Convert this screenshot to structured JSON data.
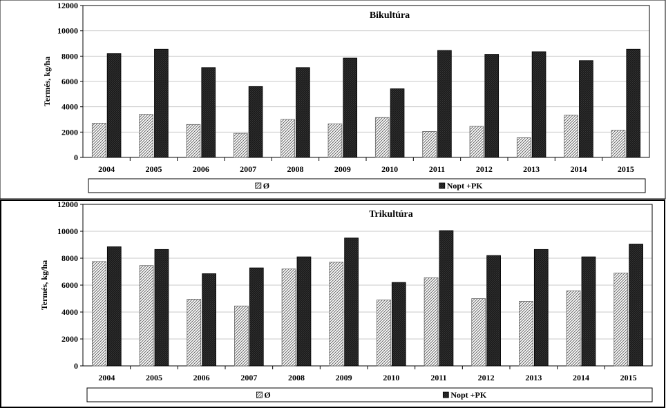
{
  "chart_data": [
    {
      "type": "bar",
      "title": "Bikultúra",
      "xlabel": "",
      "ylabel": "Termés, kg/ha",
      "ylim": [
        0,
        12000
      ],
      "yticks": [
        "0",
        "2000",
        "4000",
        "6000",
        "8000",
        "10000",
        "12000"
      ],
      "categories": [
        "2004",
        "2005",
        "2006",
        "2007",
        "2008",
        "2009",
        "2010",
        "2011",
        "2012",
        "2013",
        "2014",
        "2015"
      ],
      "series": [
        {
          "name": "Ø",
          "pattern": "hatched",
          "values": [
            2700,
            3400,
            2600,
            1900,
            3000,
            2650,
            3150,
            2050,
            2450,
            1550,
            3330,
            2150
          ]
        },
        {
          "name": "Nopt +PK",
          "pattern": "dark",
          "values": [
            8200,
            8550,
            7100,
            5600,
            7100,
            7850,
            5420,
            8450,
            8150,
            8350,
            7650,
            8550
          ]
        }
      ],
      "legend": "bottom"
    },
    {
      "type": "bar",
      "title": "Trikultúra",
      "xlabel": "",
      "ylabel": "Termés, kg/ha",
      "ylim": [
        0,
        12000
      ],
      "yticks": [
        "0",
        "2000",
        "4000",
        "6000",
        "8000",
        "10000",
        "12000"
      ],
      "categories": [
        "2004",
        "2005",
        "2006",
        "2007",
        "2008",
        "2009",
        "2010",
        "2011",
        "2012",
        "2013",
        "2014",
        "2015"
      ],
      "series": [
        {
          "name": "Ø",
          "pattern": "hatched",
          "values": [
            7750,
            7450,
            4950,
            4450,
            7200,
            7700,
            4900,
            6550,
            5000,
            4800,
            5580,
            6900
          ]
        },
        {
          "name": "Nopt +PK",
          "pattern": "dark",
          "values": [
            8850,
            8650,
            6850,
            7280,
            8100,
            9500,
            6200,
            10050,
            8200,
            8650,
            8100,
            9050
          ]
        }
      ],
      "legend": "bottom"
    }
  ]
}
